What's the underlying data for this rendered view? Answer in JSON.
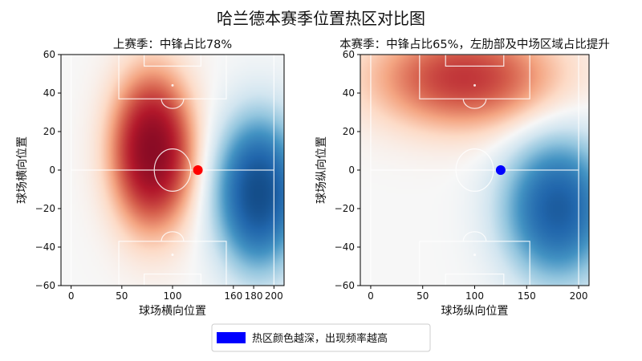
{
  "figure": {
    "title": "哈兰德本赛季位置热区对比图",
    "legend_text": "热区颜色越深，出现频率越高",
    "legend_color": "#0000ff"
  },
  "chart_data": [
    {
      "type": "heatmap",
      "title": "上赛季：中锋占比78%",
      "xlabel": "球场横向位置",
      "ylabel": "球场横向位置",
      "xlim": [
        -10,
        210
      ],
      "ylim": [
        -60,
        60
      ],
      "xticks": [
        0,
        50,
        100,
        160,
        180,
        200
      ],
      "yticks": [
        60,
        40,
        20,
        0,
        -20,
        -40,
        -60
      ],
      "colormap": "RdBu_r",
      "grid": false,
      "centroid": {
        "x": 125,
        "y": 0,
        "color": "#ff0000"
      },
      "hotspots": [
        {
          "x": 80,
          "y": 10,
          "sx": 26,
          "sy": 26,
          "w": 1.0
        },
        {
          "x": 185,
          "y": -12,
          "sx": 28,
          "sy": 26,
          "w": -0.95
        }
      ]
    },
    {
      "type": "heatmap",
      "title": "本赛季：中锋占比65%，左肋部及中场区域占比提升",
      "xlabel": "球场纵向位置",
      "ylabel": "球场纵向位置",
      "xlim": [
        -10,
        210
      ],
      "ylim": [
        -60,
        60
      ],
      "xticks": [
        0,
        50,
        100,
        150,
        200
      ],
      "yticks": [
        60,
        40,
        20,
        0,
        -20,
        -40,
        -60
      ],
      "colormap": "RdBu_r",
      "grid": false,
      "centroid": {
        "x": 125,
        "y": 0,
        "color": "#0000ff"
      },
      "hotspots": [
        {
          "x": 90,
          "y": 48,
          "sx": 60,
          "sy": 18,
          "w": 0.6
        },
        {
          "x": 180,
          "y": -20,
          "sx": 35,
          "sy": 25,
          "w": -0.8
        }
      ]
    }
  ]
}
